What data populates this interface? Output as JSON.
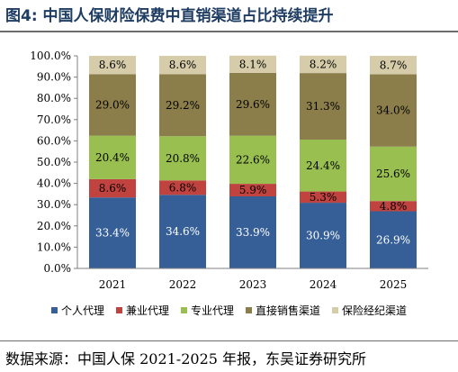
{
  "header": {
    "title": "图4:  中国人保财险保费中直销渠道占比持续提升"
  },
  "footer": {
    "source": "数据来源：中国人保 2021-2025 年报，东吴证券研究所"
  },
  "colors": {
    "个人代理": "#365f97",
    "兼业代理": "#c0433f",
    "专业代理": "#98bf50",
    "直接销售渠道": "#8b7e4a",
    "保险经纪渠道": "#d6ccaa"
  },
  "chart_data": {
    "type": "bar",
    "stacked": true,
    "categories": [
      "2021",
      "2022",
      "2023",
      "2024",
      "2025"
    ],
    "series": [
      {
        "name": "个人代理",
        "values": [
          33.4,
          34.6,
          33.9,
          30.9,
          26.9
        ],
        "labels": [
          "33.4%",
          "34.6%",
          "33.9%",
          "30.9%",
          "26.9%"
        ]
      },
      {
        "name": "兼业代理",
        "values": [
          8.6,
          6.8,
          5.9,
          5.3,
          4.8
        ],
        "labels": [
          "8.6%",
          "6.8%",
          "5.9%",
          "5.3%",
          "4.8%"
        ]
      },
      {
        "name": "专业代理",
        "values": [
          20.4,
          20.8,
          22.6,
          24.4,
          25.6
        ],
        "labels": [
          "20.4%",
          "20.8%",
          "22.6%",
          "24.4%",
          "25.6%"
        ]
      },
      {
        "name": "直接销售渠道",
        "values": [
          29.0,
          29.2,
          29.6,
          31.3,
          34.0
        ],
        "labels": [
          "29.0%",
          "29.2%",
          "29.6%",
          "31.3%",
          "34.0%"
        ]
      },
      {
        "name": "保险经纪渠道",
        "values": [
          8.6,
          8.6,
          8.1,
          8.2,
          8.7
        ],
        "labels": [
          "8.6%",
          "8.6%",
          "8.1%",
          "8.2%",
          "8.7%"
        ]
      }
    ],
    "yticks": [
      "0.0%",
      "10.0%",
      "20.0%",
      "30.0%",
      "40.0%",
      "50.0%",
      "60.0%",
      "70.0%",
      "80.0%",
      "90.0%",
      "100.0%"
    ],
    "ylim": [
      0,
      100
    ],
    "grid": false,
    "legend": "bottom"
  }
}
